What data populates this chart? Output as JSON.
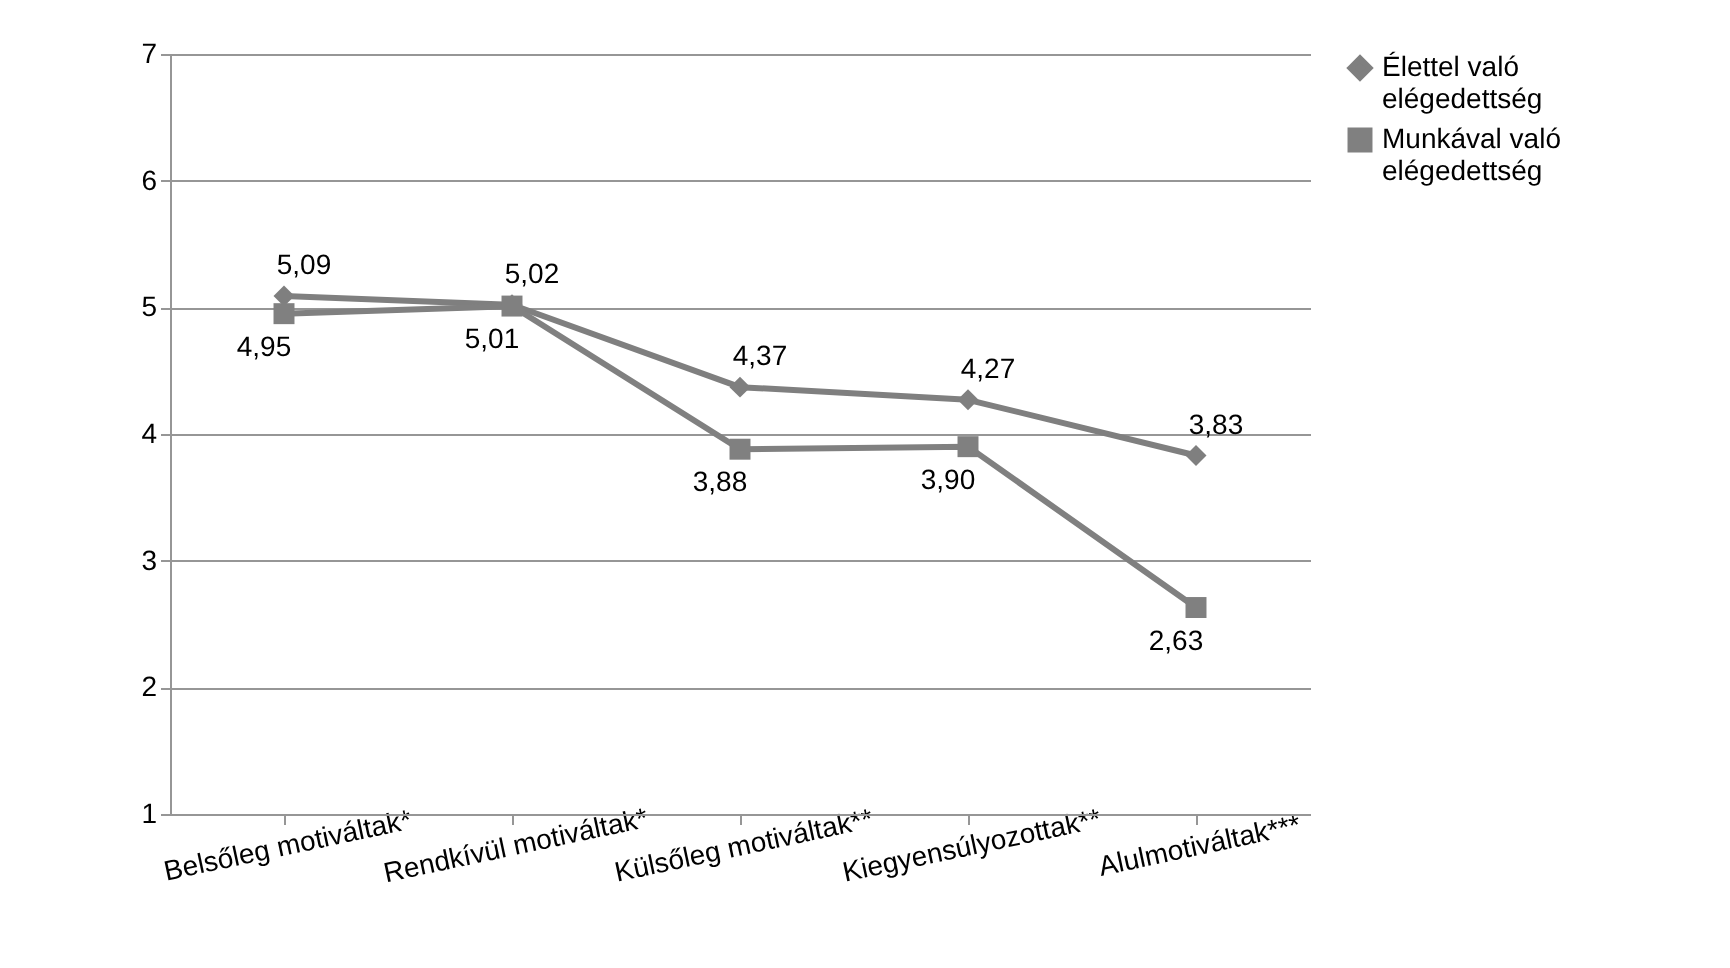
{
  "chart_data": {
    "type": "line",
    "categories": [
      "Belsőleg motiváltak*",
      "Rendkívül motiváltak*",
      "Külsőleg motiváltak**",
      "Kiegyensúlyozottak**",
      "Alulmotiváltak***"
    ],
    "series": [
      {
        "name": "Élettel való elégedettség",
        "color": "#7f7f7f",
        "marker": "diamond",
        "values": [
          5.09,
          5.02,
          4.37,
          4.27,
          3.83
        ],
        "value_labels": [
          "5,09",
          "5,02",
          "4,37",
          "4,27",
          "3,83"
        ]
      },
      {
        "name": "Munkával való elégedettség",
        "color": "#808080",
        "marker": "square",
        "values": [
          4.95,
          5.01,
          3.88,
          3.9,
          2.63
        ],
        "value_labels": [
          "4,95",
          "5,01",
          "3,88",
          "3,90",
          "2,63"
        ]
      }
    ],
    "ylim": [
      1,
      7
    ],
    "yticks": [
      1,
      2,
      3,
      4,
      5,
      6,
      7
    ],
    "grid": "y",
    "legend": "right"
  }
}
